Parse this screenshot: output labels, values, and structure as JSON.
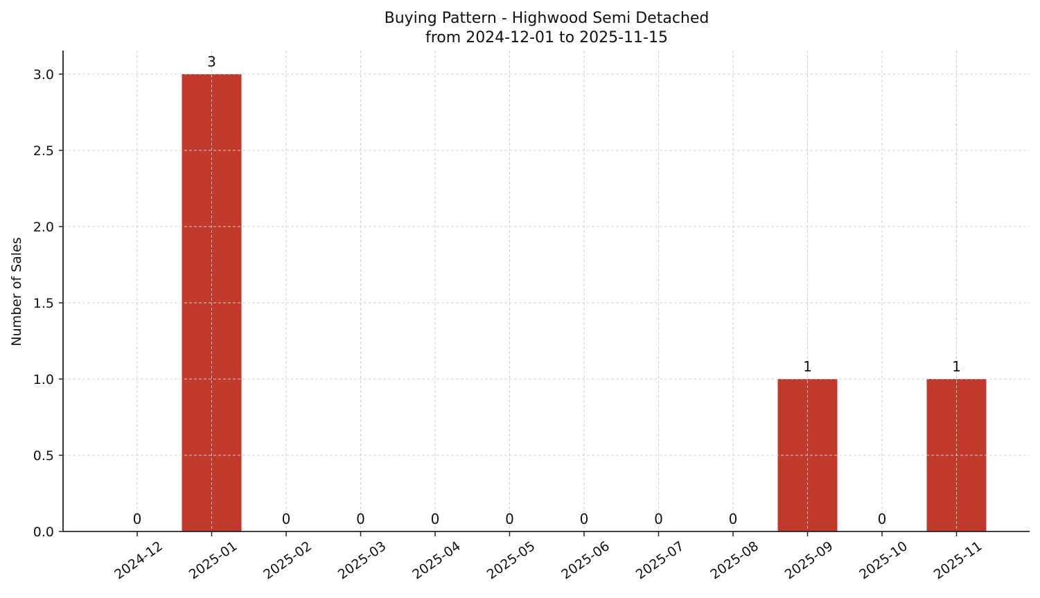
{
  "chart_data": {
    "type": "bar",
    "title": "Buying Pattern - Highwood Semi Detached",
    "subtitle": "from 2024-12-01 to 2025-11-15",
    "xlabel": "",
    "ylabel": "Number of Sales",
    "categories": [
      "2024-12",
      "2025-01",
      "2025-02",
      "2025-03",
      "2025-04",
      "2025-05",
      "2025-06",
      "2025-07",
      "2025-08",
      "2025-09",
      "2025-10",
      "2025-11"
    ],
    "values": [
      0,
      3,
      0,
      0,
      0,
      0,
      0,
      0,
      0,
      1,
      0,
      1
    ],
    "data_labels": [
      "0",
      "3",
      "0",
      "0",
      "0",
      "0",
      "0",
      "0",
      "0",
      "1",
      "0",
      "1"
    ],
    "ylim": [
      0,
      3.15
    ],
    "yticks": [
      "0.0",
      "0.5",
      "1.0",
      "1.5",
      "2.0",
      "2.5",
      "3.0"
    ],
    "grid": true,
    "legend": null,
    "colors": {
      "bar": "#c0392b",
      "axis": "#222222",
      "grid": "#d0d0d0",
      "text": "#111111"
    }
  }
}
